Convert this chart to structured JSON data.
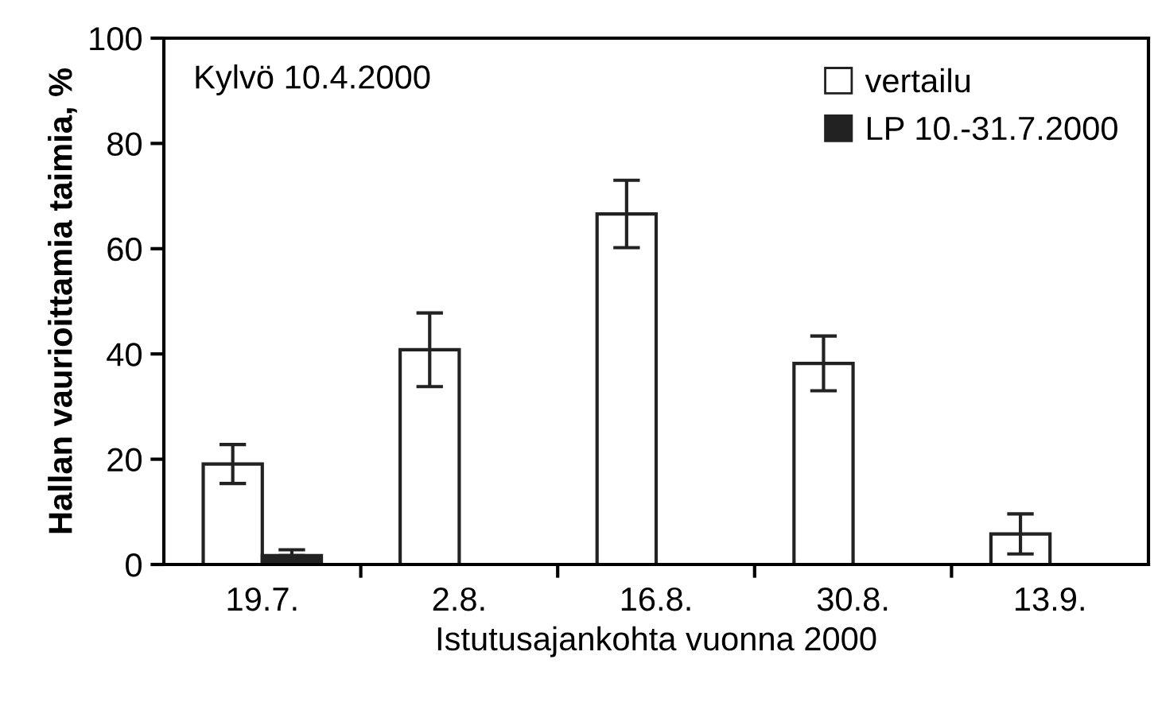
{
  "chart_data": {
    "type": "bar",
    "xlabel": "Istutusajankohta vuonna 2000",
    "ylabel": "Hallan vaurioittamia taimia, %",
    "categories": [
      "19.7.",
      "2.8.",
      "16.8.",
      "30.8.",
      "13.9."
    ],
    "series": [
      {
        "name": "vertailu",
        "color": "#ffffff",
        "values": [
          19.1,
          40.8,
          66.6,
          38.2,
          5.8
        ],
        "errors": [
          3.7,
          7,
          6.4,
          5.2,
          3.8
        ]
      },
      {
        "name": "LP 10.-31.7.2000",
        "color": "#222222",
        "values": [
          1.7,
          0,
          0,
          0,
          0
        ],
        "errors": [
          [
            1.7,
            2.8
          ],
          null,
          null,
          null,
          null
        ]
      }
    ],
    "ylim": [
      0,
      100
    ],
    "yticks": [
      0,
      20,
      40,
      60,
      80,
      100
    ],
    "grid": false,
    "legend": "top right",
    "annotations": [
      "Kylvö 10.4.2000"
    ]
  }
}
